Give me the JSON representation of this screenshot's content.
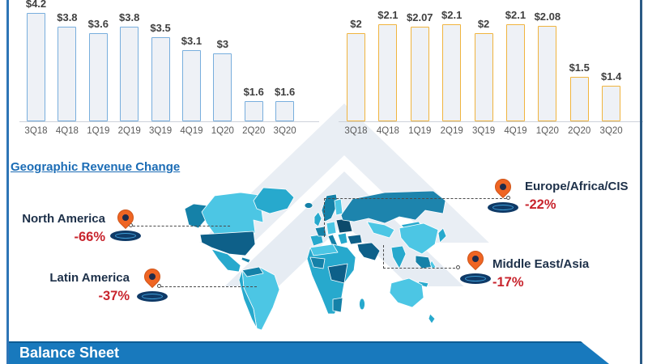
{
  "chart_data": [
    {
      "type": "bar",
      "title": "",
      "categories": [
        "3Q18",
        "4Q18",
        "1Q19",
        "2Q19",
        "3Q19",
        "4Q19",
        "1Q20",
        "2Q20",
        "3Q20"
      ],
      "values": [
        4.2,
        3.8,
        3.6,
        3.8,
        3.5,
        3.1,
        3,
        1.6,
        1.6
      ],
      "data_labels": [
        "$4.2",
        "$3.8",
        "$3.6",
        "$3.8",
        "$3.5",
        "$3.1",
        "$3",
        "$1.6",
        "$1.6"
      ],
      "ylim": [
        1,
        4.4
      ],
      "bar_fill": "#eef1f6",
      "bar_border": "#78aedd",
      "grid": false,
      "legend": "none"
    },
    {
      "type": "bar",
      "title": "",
      "categories": [
        "3Q18",
        "4Q18",
        "1Q19",
        "2Q19",
        "3Q19",
        "4Q19",
        "1Q20",
        "2Q20",
        "3Q20"
      ],
      "values": [
        2,
        2.1,
        2.07,
        2.1,
        2,
        2.1,
        2.08,
        1.5,
        1.4
      ],
      "data_labels": [
        "$2",
        "$2.1",
        "$2.07",
        "$2.1",
        "$2",
        "$2.1",
        "$2.08",
        "$1.5",
        "$1.4"
      ],
      "ylim": [
        1,
        2.3
      ],
      "bar_fill": "#eef1f6",
      "bar_border": "#f0b43e",
      "grid": false,
      "legend": "none"
    }
  ],
  "section": {
    "heading": "Geographic Revenue Change"
  },
  "regions": [
    {
      "name": "North America",
      "change": "-66%"
    },
    {
      "name": "Latin America",
      "change": "-37%"
    },
    {
      "name": "Europe/Africa/CIS",
      "change": "-22%"
    },
    {
      "name": "Middle East/Asia",
      "change": "-17%"
    }
  ],
  "icons": {
    "pin": "map-pin-icon"
  },
  "footer": {
    "banner_label": "Balance Sheet"
  },
  "colors": {
    "heading_blue": "#1b6cb5",
    "region_label": "#1d3049",
    "change_red": "#c8242d",
    "banner_blue": "#1879bd",
    "bar_border_blue": "#78aedd",
    "bar_border_gold": "#f0b43e",
    "pin_orange": "#ef6523",
    "pin_base_navy": "#0f3a67",
    "map_light": "#4cc6e4",
    "map_mid": "#27a9cd",
    "map_dark": "#1581a8",
    "map_deep": "#0e6089",
    "map_navy": "#0d4a6b"
  }
}
